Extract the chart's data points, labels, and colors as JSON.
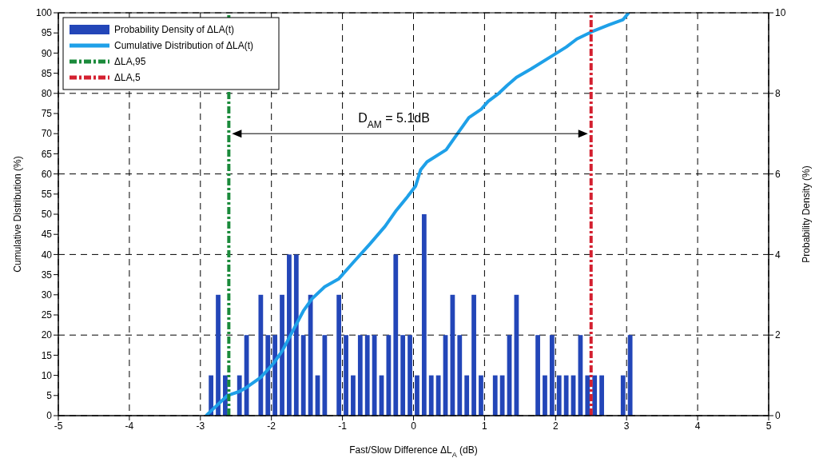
{
  "chart_data": {
    "type": "line",
    "xlabel": "Fast/Slow Difference ΔL$_{A}$ (dB)",
    "ylabel": "Cumulative Distribution (%)",
    "y2label": "Probability Density (%)",
    "xlim": [
      -5,
      5
    ],
    "xticks": [
      -5,
      -4,
      -3,
      -2,
      -1,
      0,
      1,
      2,
      3,
      4,
      5
    ],
    "ylim": [
      0,
      100
    ],
    "yticks": [
      0,
      5,
      10,
      15,
      20,
      25,
      30,
      35,
      40,
      45,
      50,
      55,
      60,
      65,
      70,
      75,
      80,
      85,
      90,
      95,
      100
    ],
    "y2lim": [
      0,
      10
    ],
    "y2ticks": [
      0,
      2,
      4,
      6,
      8,
      10
    ],
    "grid": true,
    "legend": "top left",
    "marker": "none",
    "series": [
      {
        "name": "Probability Density of ΔLA(t)",
        "type": "histogram",
        "axis": "y2",
        "color": "#2346b8",
        "bins": [
          -2.9,
          -2.8,
          -2.7,
          -2.6,
          -2.5,
          -2.4,
          -2.3,
          -2.2,
          -2.1,
          -2.0,
          -1.9,
          -1.8,
          -1.7,
          -1.6,
          -1.5,
          -1.4,
          -1.3,
          -1.2,
          -1.1,
          -1.0,
          -0.9,
          -0.8,
          -0.7,
          -0.6,
          -0.5,
          -0.4,
          -0.3,
          -0.2,
          -0.1,
          0.0,
          0.1,
          0.2,
          0.3,
          0.4,
          0.5,
          0.6,
          0.7,
          0.8,
          0.9,
          1.0,
          1.1,
          1.2,
          1.3,
          1.4,
          1.5,
          1.6,
          1.7,
          1.8,
          1.9,
          2.0,
          2.1,
          2.2,
          2.3,
          2.4,
          2.5,
          2.6,
          2.7,
          2.8,
          2.9,
          3.0,
          3.1
        ],
        "values": [
          1,
          3,
          1,
          0,
          1,
          2,
          0,
          3,
          2,
          2,
          3,
          4,
          4,
          2,
          3,
          1,
          2,
          0,
          3,
          2,
          1,
          2,
          2,
          2,
          1,
          2,
          4,
          2,
          2,
          1,
          5,
          1,
          1,
          2,
          3,
          2,
          1,
          3,
          1,
          0,
          1,
          1,
          2,
          3,
          0,
          0,
          2,
          1,
          2,
          1,
          1,
          1,
          2,
          1,
          1,
          1,
          0,
          0,
          1,
          2
        ]
      },
      {
        "name": "Cumulative Distribution of ΔLA(t)",
        "color": "#1ea0e8",
        "x": [
          -2.92,
          -2.8,
          -2.62,
          -2.45,
          -2.35,
          -2.15,
          -1.97,
          -1.85,
          -1.7,
          -1.55,
          -1.43,
          -1.25,
          -1.05,
          -0.85,
          -0.62,
          -0.4,
          -0.24,
          -0.1,
          0.03,
          0.1,
          0.19,
          0.46,
          0.62,
          0.78,
          0.95,
          1.05,
          1.2,
          1.32,
          1.45,
          1.65,
          1.97,
          2.15,
          2.3,
          2.51,
          2.75,
          2.95,
          3.03
        ],
        "values": [
          0,
          2,
          5,
          6,
          7,
          9.5,
          13,
          16,
          21,
          26,
          29,
          32,
          34,
          38,
          42.5,
          47,
          51,
          54,
          57,
          61,
          63,
          66,
          70,
          74,
          76,
          78,
          80,
          82,
          84,
          86,
          89.5,
          91.5,
          93.5,
          95.3,
          97,
          98.3,
          100
        ]
      },
      {
        "name": "ΔLA,95",
        "color": "#1a8a3a",
        "line_style": "dashdot",
        "x": [
          -2.6,
          -2.6
        ],
        "values": [
          0,
          100
        ]
      },
      {
        "name": "ΔLA,5",
        "color": "#d42030",
        "line_style": "dashdot",
        "x": [
          2.5,
          2.5
        ],
        "values": [
          0,
          100
        ]
      }
    ],
    "annotations": [
      "D$_{AM}$ = 5.1dB"
    ]
  }
}
